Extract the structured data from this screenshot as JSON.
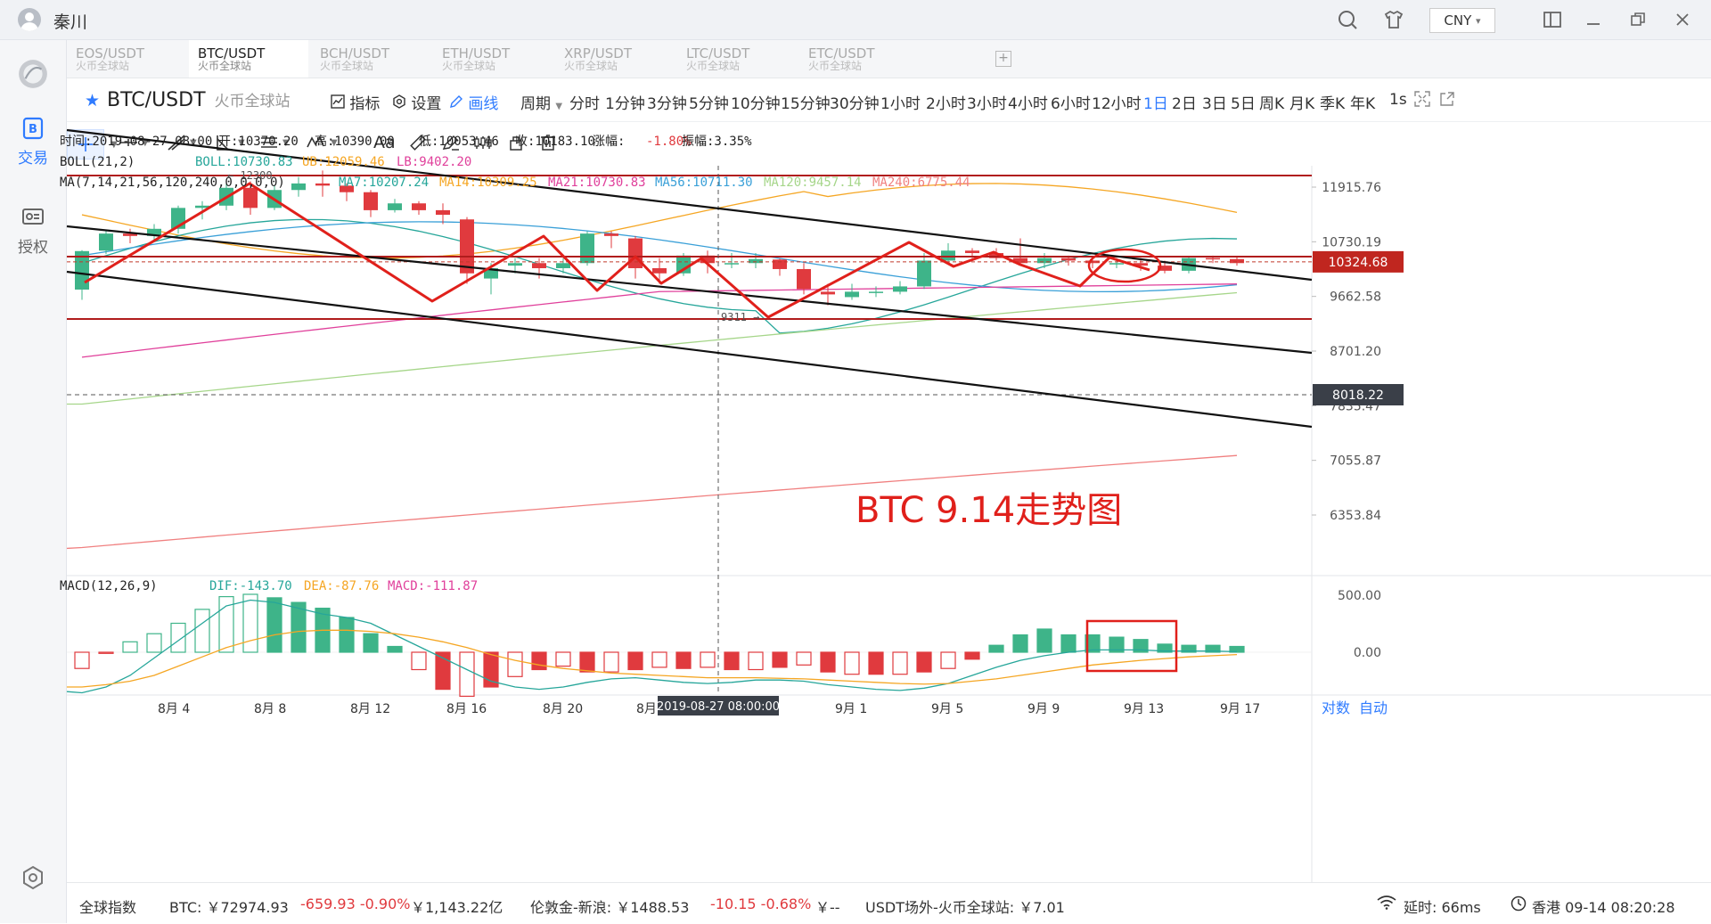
{
  "window": {
    "username": "秦川",
    "currency": "CNY",
    "currency_caret": "▾"
  },
  "sidebar": {
    "items": [
      {
        "label": "交易",
        "icon": "trade-icon"
      },
      {
        "label": "授权",
        "icon": "auth-icon"
      }
    ]
  },
  "market_tabs": [
    {
      "pair": "EOS/USDT",
      "exchange": "火币全球站"
    },
    {
      "pair": "BTC/USDT",
      "exchange": "火币全球站"
    },
    {
      "pair": "BCH/USDT",
      "exchange": "火币全球站"
    },
    {
      "pair": "ETH/USDT",
      "exchange": "火币全球站"
    },
    {
      "pair": "XRP/USDT",
      "exchange": "火币全球站"
    },
    {
      "pair": "LTC/USDT",
      "exchange": "火币全球站"
    },
    {
      "pair": "ETC/USDT",
      "exchange": "火币全球站"
    }
  ],
  "active_tab": "BTC/USDT",
  "toolbar": {
    "pair": "BTC/USDT",
    "exchange": "火币全球站",
    "indicator_label": "指标",
    "settings_label": "设置",
    "draw_label": "画线",
    "period_label": "周期",
    "periods": [
      "分时",
      "1分钟",
      "3分钟",
      "5分钟",
      "10分钟",
      "15分钟",
      "30分钟",
      "1小时",
      "2小时",
      "3小时",
      "4小时",
      "6小时",
      "12小时",
      "1日",
      "2日",
      "3日",
      "5日",
      "周K",
      "月K",
      "季K",
      "年K"
    ],
    "active_period": "1日",
    "refresh": "1s"
  },
  "drawtools": {
    "text_tool": "Aa"
  },
  "chart_data": {
    "type": "candlestick",
    "info": {
      "time_label": "时间:",
      "time": "2019-08-27 08:00",
      "open_label": "开:",
      "open": "10370.20",
      "high_label": "高:",
      "high": "10390.00",
      "low_label": "低:",
      "low": "10053.46",
      "close_label": "收:",
      "close": "10183.10",
      "change_label": "涨幅:",
      "change": "-1.80%",
      "amp_label": "振幅:",
      "amp": "3.35%"
    },
    "boll": {
      "name": "BOLL(21,2)",
      "boll": "BOLL:10730.83",
      "ub": "UB:12059.46",
      "lb": "LB:9402.20"
    },
    "ma": {
      "name": "MA(7,14,21,56,120,240,0,0,0,0)",
      "items": [
        {
          "text": "MA7:10207.24",
          "color": "#26a69a"
        },
        {
          "text": "MA14:10309.25",
          "color": "#f5a623"
        },
        {
          "text": "MA21:10730.83",
          "color": "#e0409b"
        },
        {
          "text": "MA56:10711.30",
          "color": "#3aa0d8"
        },
        {
          "text": "MA120:9457.14",
          "color": "#a6d68a"
        },
        {
          "text": "MA240:6775.44",
          "color": "#f08080"
        }
      ]
    },
    "price_axis": [
      "11915.76",
      "10730.19",
      "9662.58",
      "8701.20",
      "7835.47",
      "7055.87",
      "6353.84"
    ],
    "current_price": "10324.68",
    "cursor_price": "8018.22",
    "high_marker": "12300",
    "low_marker": "9311",
    "x_dates": [
      "8月 4",
      "8月 8",
      "8月 12",
      "8月 16",
      "8月 20",
      "8月 2",
      "9月 1",
      "9月 5",
      "9月 9",
      "9月 13",
      "9月 17"
    ],
    "cursor_date": "2019-08-27 08:00:00",
    "candles": [
      [
        9790,
        10540,
        9600,
        10560
      ],
      [
        10550,
        10900,
        10480,
        10960
      ],
      [
        10900,
        10850,
        10700,
        11000
      ],
      [
        10850,
        11000,
        10750,
        11100
      ],
      [
        11000,
        11450,
        10900,
        11500
      ],
      [
        11450,
        11500,
        11200,
        11600
      ],
      [
        11500,
        11900,
        11400,
        12000
      ],
      [
        11900,
        11450,
        11300,
        12050
      ],
      [
        11450,
        11850,
        11400,
        11950
      ],
      [
        11850,
        12000,
        11700,
        12150
      ],
      [
        12000,
        11950,
        11700,
        12300
      ],
      [
        11950,
        11800,
        11600,
        12000
      ],
      [
        11800,
        11400,
        11250,
        11850
      ],
      [
        11400,
        11550,
        11350,
        11650
      ],
      [
        11550,
        11400,
        11300,
        11600
      ],
      [
        11400,
        11300,
        11100,
        11550
      ],
      [
        11200,
        10100,
        9900,
        11250
      ],
      [
        10000,
        10200,
        9700,
        10300
      ],
      [
        10250,
        10300,
        10100,
        10400
      ],
      [
        10300,
        10200,
        10000,
        10400
      ],
      [
        10200,
        10300,
        10100,
        10400
      ],
      [
        10300,
        10900,
        10250,
        10950
      ],
      [
        10900,
        10850,
        10600,
        10950
      ],
      [
        10800,
        10200,
        10000,
        10850
      ],
      [
        10200,
        10100,
        9900,
        10400
      ],
      [
        10100,
        10450,
        10050,
        10500
      ],
      [
        10450,
        10300,
        10100,
        10550
      ],
      [
        10300,
        10300,
        10200,
        10500
      ],
      [
        10300,
        10380,
        10200,
        10500
      ],
      [
        10370,
        10183,
        10053,
        10390
      ],
      [
        10183,
        9800,
        9700,
        10300
      ],
      [
        9750,
        9700,
        9500,
        9900
      ],
      [
        9650,
        9750,
        9600,
        9900
      ],
      [
        9750,
        9750,
        9650,
        9850
      ],
      [
        9750,
        9850,
        9700,
        9950
      ],
      [
        9850,
        10350,
        9800,
        10500
      ],
      [
        10350,
        10550,
        10300,
        10700
      ],
      [
        10550,
        10500,
        10400,
        10600
      ],
      [
        10500,
        10400,
        10350,
        10600
      ],
      [
        10400,
        10300,
        10250,
        10800
      ],
      [
        10300,
        10400,
        10200,
        10500
      ],
      [
        10400,
        10350,
        10250,
        10450
      ],
      [
        10350,
        10300,
        10200,
        10400
      ],
      [
        10300,
        10300,
        10200,
        10400
      ],
      [
        10300,
        10250,
        10150,
        10400
      ],
      [
        10250,
        10150,
        10100,
        10350
      ],
      [
        10150,
        10400,
        10100,
        10420
      ],
      [
        10400,
        10380,
        10300,
        10450
      ],
      [
        10380,
        10300,
        10250,
        10420
      ]
    ],
    "macd": {
      "name": "MACD(12,26,9)",
      "dif": "DIF:-143.70",
      "dea": "DEA:-87.76",
      "macd": "MACD:-111.87",
      "axis": [
        "500.00",
        "0.00"
      ],
      "bars": [
        -140,
        -10,
        90,
        160,
        250,
        370,
        480,
        500,
        470,
        430,
        380,
        300,
        160,
        50,
        -150,
        -320,
        -380,
        -300,
        -210,
        -150,
        -120,
        -170,
        -170,
        -150,
        -130,
        -140,
        -130,
        -150,
        -150,
        -130,
        -110,
        -170,
        -190,
        -190,
        -190,
        -170,
        -140,
        -60,
        60,
        150,
        200,
        150,
        150,
        130,
        110,
        70,
        60,
        60,
        50
      ],
      "dif_line": [
        -350,
        -300,
        -200,
        -50,
        100,
        250,
        400,
        450,
        430,
        380,
        330,
        300,
        250,
        150,
        50,
        -50,
        -150,
        -250,
        -300,
        -320,
        -300,
        -260,
        -230,
        -220,
        -240,
        -260,
        -270,
        -260,
        -240,
        -240,
        -250,
        -280,
        -300,
        -320,
        -330,
        -310,
        -270,
        -200,
        -130,
        -70,
        -30,
        0,
        20,
        20,
        20,
        10,
        10,
        10,
        5
      ],
      "dea_line": [
        -300,
        -280,
        -250,
        -200,
        -120,
        -40,
        40,
        100,
        150,
        180,
        190,
        190,
        180,
        160,
        130,
        90,
        40,
        -20,
        -70,
        -110,
        -140,
        -160,
        -180,
        -190,
        -200,
        -210,
        -220,
        -220,
        -220,
        -225,
        -230,
        -240,
        -250,
        -260,
        -270,
        -275,
        -270,
        -250,
        -230,
        -200,
        -170,
        -140,
        -110,
        -90,
        -70,
        -55,
        -40,
        -30,
        -20
      ]
    },
    "annotation": "BTC  9.14走势图",
    "axis_modes": [
      "对数",
      "自动"
    ]
  },
  "footer": {
    "global_index": "全球指数",
    "btc": "BTC: ￥72974.93",
    "btc_change": "-659.93 -0.90%",
    "btc_cap": "￥1,143.22亿",
    "gold": "伦敦金-新浪: ￥1488.53",
    "gold_change": "-10.15 -0.68%",
    "gold_extra": "￥--",
    "usdt": "USDT场外-火币全球站: ￥7.01",
    "latency": "延时: 66ms",
    "clock": "香港 09-14 08:20:28"
  }
}
